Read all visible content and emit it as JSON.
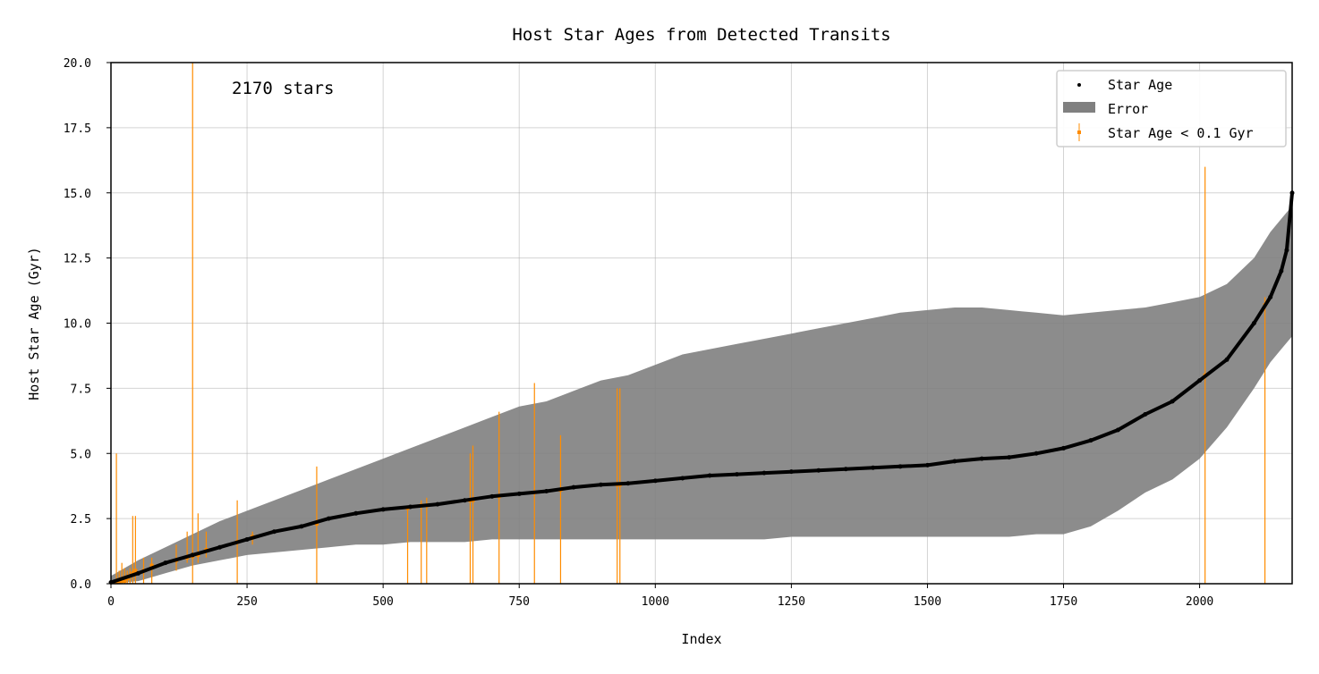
{
  "chart_data": {
    "type": "scatter",
    "title": "Host Star Ages from Detected Transits",
    "xlabel": "Index",
    "ylabel": "Host Star Age (Gyr)",
    "xlim": [
      0,
      2170
    ],
    "ylim": [
      0,
      20
    ],
    "xticks": [
      0,
      250,
      500,
      750,
      1000,
      1250,
      1500,
      1750,
      2000
    ],
    "yticks": [
      0.0,
      2.5,
      5.0,
      7.5,
      10.0,
      12.5,
      15.0,
      17.5,
      20.0
    ],
    "xtick_labels": [
      "0",
      "250",
      "500",
      "750",
      "1000",
      "1250",
      "1500",
      "1750",
      "2000"
    ],
    "ytick_labels": [
      "0.0",
      "2.5",
      "5.0",
      "7.5",
      "10.0",
      "12.5",
      "15.0",
      "17.5",
      "20.0"
    ],
    "grid": true,
    "legend_position": "top-right",
    "annotation": "2170 stars",
    "colors": {
      "star_age": "#000000",
      "error": "#808080",
      "young": "#ff8c00"
    },
    "series": [
      {
        "name": "Star Age",
        "kind": "points",
        "x": [
          0,
          50,
          100,
          150,
          200,
          250,
          300,
          350,
          400,
          450,
          500,
          550,
          600,
          650,
          700,
          750,
          800,
          850,
          900,
          950,
          1000,
          1050,
          1100,
          1150,
          1200,
          1250,
          1300,
          1350,
          1400,
          1450,
          1500,
          1550,
          1600,
          1650,
          1700,
          1750,
          1800,
          1850,
          1900,
          1950,
          2000,
          2050,
          2100,
          2130,
          2150,
          2160,
          2170
        ],
        "y": [
          0.05,
          0.4,
          0.8,
          1.1,
          1.4,
          1.7,
          2.0,
          2.2,
          2.5,
          2.7,
          2.85,
          2.95,
          3.05,
          3.2,
          3.35,
          3.45,
          3.55,
          3.7,
          3.8,
          3.85,
          3.95,
          4.05,
          4.15,
          4.2,
          4.25,
          4.3,
          4.35,
          4.4,
          4.45,
          4.5,
          4.55,
          4.7,
          4.8,
          4.85,
          5.0,
          5.2,
          5.5,
          5.9,
          6.5,
          7.0,
          7.8,
          8.6,
          10.0,
          11.0,
          12.0,
          12.8,
          15.0
        ]
      },
      {
        "name": "Error",
        "kind": "band",
        "x": [
          0,
          50,
          100,
          150,
          200,
          250,
          300,
          350,
          400,
          450,
          500,
          550,
          600,
          650,
          700,
          750,
          800,
          850,
          900,
          950,
          1000,
          1050,
          1100,
          1150,
          1200,
          1250,
          1300,
          1350,
          1400,
          1450,
          1500,
          1550,
          1600,
          1650,
          1700,
          1750,
          1800,
          1850,
          1900,
          1950,
          2000,
          2050,
          2100,
          2130,
          2150,
          2170
        ],
        "lower": [
          0.0,
          0.1,
          0.4,
          0.7,
          0.9,
          1.1,
          1.2,
          1.3,
          1.4,
          1.5,
          1.5,
          1.6,
          1.6,
          1.6,
          1.7,
          1.7,
          1.7,
          1.7,
          1.7,
          1.7,
          1.7,
          1.7,
          1.7,
          1.7,
          1.7,
          1.8,
          1.8,
          1.8,
          1.8,
          1.8,
          1.8,
          1.8,
          1.8,
          1.8,
          1.9,
          1.9,
          2.2,
          2.8,
          3.5,
          4.0,
          4.8,
          6.0,
          7.5,
          8.5,
          9.0,
          9.5
        ],
        "upper": [
          0.3,
          0.9,
          1.4,
          1.9,
          2.4,
          2.8,
          3.2,
          3.6,
          4.0,
          4.4,
          4.8,
          5.2,
          5.6,
          6.0,
          6.4,
          6.8,
          7.0,
          7.4,
          7.8,
          8.0,
          8.4,
          8.8,
          9.0,
          9.2,
          9.4,
          9.6,
          9.8,
          10.0,
          10.2,
          10.4,
          10.5,
          10.6,
          10.6,
          10.5,
          10.4,
          10.3,
          10.4,
          10.5,
          10.6,
          10.8,
          11.0,
          11.5,
          12.5,
          13.5,
          14.0,
          14.5
        ]
      },
      {
        "name": "Star Age < 0.1 Gyr",
        "kind": "errorbars",
        "x": [
          10,
          15,
          20,
          25,
          30,
          35,
          40,
          45,
          60,
          75,
          120,
          140,
          150,
          160,
          175,
          232,
          260,
          378,
          545,
          570,
          580,
          660,
          665,
          713,
          778,
          826,
          930,
          935,
          2010,
          2120
        ],
        "y": [
          0.05,
          0.05,
          0.1,
          0.1,
          0.2,
          0.3,
          0.4,
          0.5,
          0.5,
          0.7,
          0.9,
          1.0,
          1.05,
          1.1,
          1.3,
          1.6,
          1.8,
          2.3,
          2.9,
          3.0,
          3.0,
          3.2,
          3.2,
          3.35,
          3.5,
          3.6,
          3.8,
          3.8,
          8.0,
          10.7
        ],
        "lower": [
          0.0,
          0.0,
          0.0,
          0.0,
          0.0,
          0.0,
          0.0,
          0.0,
          0.0,
          0.0,
          0.5,
          0.8,
          0.0,
          0.8,
          1.0,
          0.0,
          1.5,
          0.0,
          0.0,
          0.0,
          0.0,
          0.0,
          0.0,
          0.0,
          0.0,
          0.0,
          0.0,
          0.0,
          0.0,
          0.0
        ],
        "upper": [
          5.0,
          0.5,
          0.8,
          0.6,
          0.5,
          0.6,
          2.6,
          2.6,
          1.0,
          1.0,
          1.5,
          2.0,
          20.0,
          2.7,
          2.0,
          3.2,
          2.0,
          4.5,
          3.0,
          3.2,
          3.3,
          5.0,
          5.3,
          6.6,
          7.7,
          5.7,
          7.5,
          7.5,
          16.0,
          11.0
        ]
      }
    ]
  }
}
